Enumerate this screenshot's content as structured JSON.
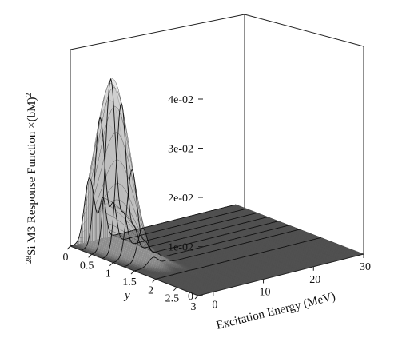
{
  "chart_data": {
    "type": "surface",
    "zlabel_prefix": "28",
    "zlabel_element": "Si",
    "zlabel_main": " M3 Response Function ×(bM)",
    "zlabel_power": "2",
    "xlabel": "Excitation Energy (MeV)",
    "ylabel": "y",
    "x_ticks": [
      "0",
      "10",
      "20",
      "30"
    ],
    "y_ticks": [
      "0",
      "0.5",
      "1",
      "1.5",
      "2",
      "2.5",
      "3"
    ],
    "z_ticks": [
      "0",
      "1e-02",
      "2e-02",
      "3e-02",
      "4e-02"
    ],
    "xlim": [
      -3,
      30
    ],
    "ylim": [
      0,
      3
    ],
    "zlim": [
      0,
      0.04
    ],
    "peak": {
      "energy": 0.8,
      "y": 0.55,
      "value": 0.035
    },
    "secondary_peak": {
      "energy": 3.5,
      "value": 0.008
    }
  }
}
